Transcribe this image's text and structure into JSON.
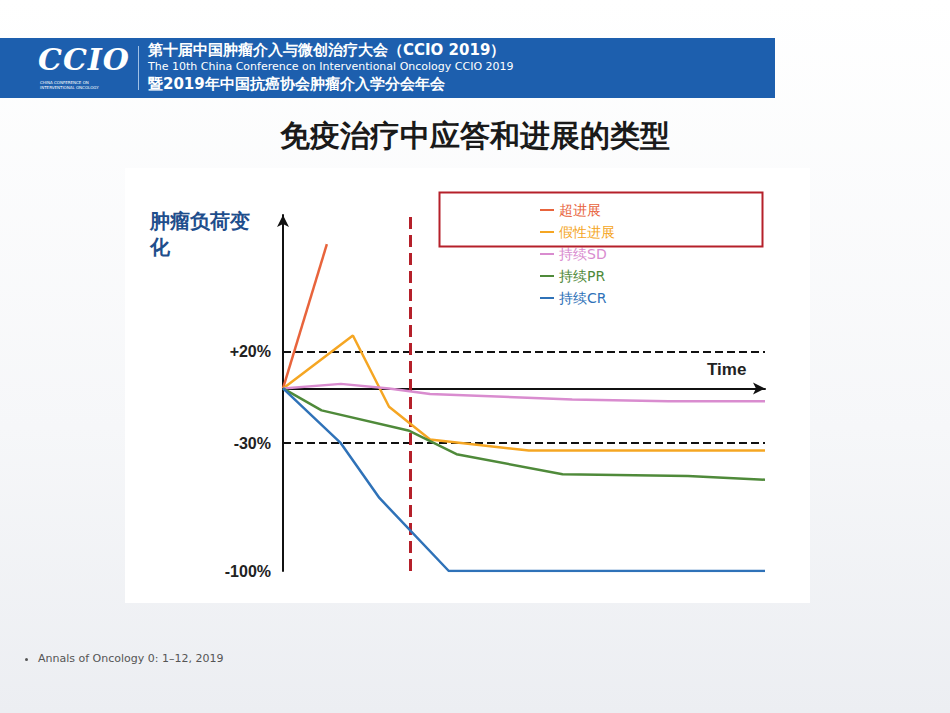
{
  "header": {
    "logo": "CCIO",
    "logo_subtitle": "CHINA CONFERENCE ON INTERVENTIONAL ONCOLOGY",
    "line1": "第十届中国肿瘤介入与微创治疗大会（CCIO 2019）",
    "line2": "The 10th China Conference on Interventional Oncology CCIO 2019",
    "line3": "暨2019年中国抗癌协会肿瘤介入学分会年会"
  },
  "title": "免疫治疗中应答和进展的类型",
  "chart_data": {
    "type": "line",
    "y_label": "肿瘤负荷变化",
    "x_label": "Time",
    "xlim": [
      0,
      100
    ],
    "ylim": [
      -100,
      95
    ],
    "yticks": [
      {
        "value": 20,
        "label": "+20%"
      },
      {
        "value": -30,
        "label": "-30%"
      },
      {
        "value": -100,
        "label": "-100%"
      }
    ],
    "grid": true,
    "tick_labels": "y",
    "legend": "upper right",
    "vlines": [
      {
        "x": 26.3,
        "color": "#b5202a",
        "line_style": "dashed"
      }
    ],
    "series": [
      {
        "name": "超进展",
        "color": "#e8643c",
        "x": [
          0,
          9.1
        ],
        "values": [
          0,
          79
        ]
      },
      {
        "name": "假性进展",
        "color": "#f5a623",
        "x": [
          0,
          14.5,
          22,
          30.5,
          51,
          100
        ],
        "values": [
          0,
          29,
          -10,
          -28,
          -34,
          -34
        ]
      },
      {
        "name": "持续SD",
        "color": "#d98ccf",
        "x": [
          0,
          12,
          22,
          30.5,
          60,
          80,
          100
        ],
        "values": [
          0,
          2.5,
          0,
          -3,
          -6,
          -7,
          -7
        ]
      },
      {
        "name": "持续PR",
        "color": "#4f8a3a",
        "x": [
          0,
          8,
          26,
          36,
          58,
          84,
          100
        ],
        "values": [
          0,
          -12,
          -23,
          -36,
          -47,
          -48,
          -50
        ]
      },
      {
        "name": "持续CR",
        "color": "#2f72b8",
        "x": [
          0,
          12,
          20,
          34.4,
          100
        ],
        "values": [
          0,
          -30,
          -60,
          -100,
          -100
        ]
      }
    ]
  },
  "footer": "Annals of Oncology 0: 1–12, 2019"
}
